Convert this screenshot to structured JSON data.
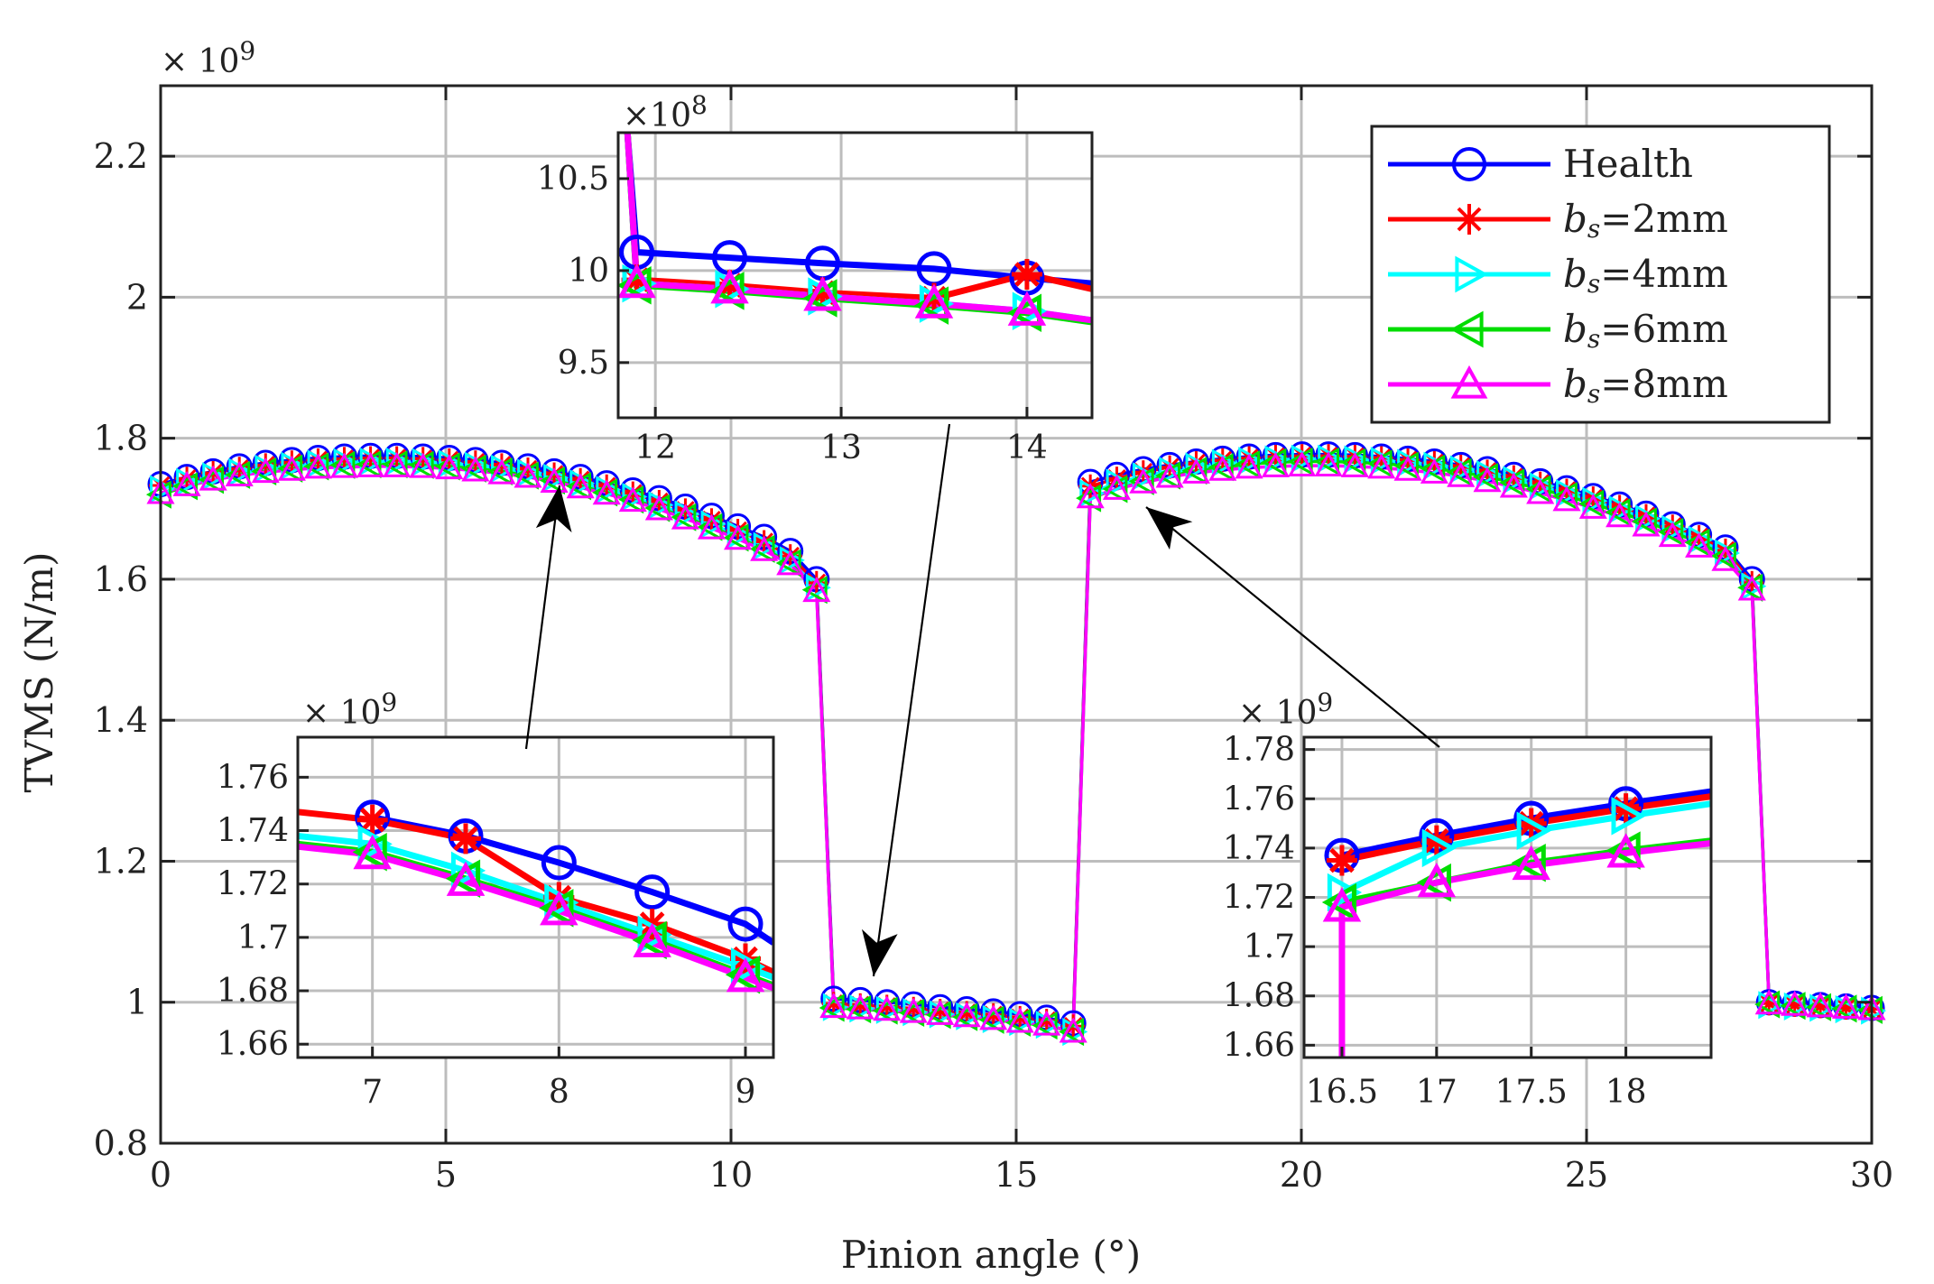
{
  "chart_data": {
    "type": "line",
    "xlabel": "Pinion angle (°)",
    "ylabel": "TVMS (N/m)",
    "y_multiplier": "× 10^9",
    "xlim": [
      0,
      30
    ],
    "ylim": [
      0.8,
      2.3
    ],
    "xticks": [
      "0",
      "5",
      "10",
      "15",
      "20",
      "25",
      "30"
    ],
    "yticks": [
      "0.8",
      "1",
      "1.2",
      "1.4",
      "1.6",
      "1.8",
      "2",
      "2.2"
    ],
    "grid": true,
    "legend_position": "top-right",
    "colors": {
      "Health": "#0000ff",
      "bs=2mm": "#ff0000",
      "bs=4mm": "#00ffff",
      "bs=6mm": "#00dd00",
      "bs=8mm": "#ff00ff"
    },
    "series": [
      {
        "name": "Health",
        "label_italic": "",
        "label_rest": "Health",
        "color": "#0000ff",
        "marker": "circle",
        "double_tooth_1": {
          "x_start": 0,
          "x_end": 11.5,
          "values": [
            1.735,
            1.745,
            1.753,
            1.76,
            1.765,
            1.769,
            1.772,
            1.774,
            1.775,
            1.775,
            1.774,
            1.772,
            1.769,
            1.765,
            1.76,
            1.753,
            1.745,
            1.736,
            1.726,
            1.715,
            1.703,
            1.69,
            1.675,
            1.66,
            1.64,
            1.6
          ]
        },
        "single_tooth": {
          "x_start": 11.8,
          "x_end": 16.0,
          "values": [
            1.005,
            1.003,
            1.0,
            0.997,
            0.993,
            0.99,
            0.987,
            0.983,
            0.978,
            0.97
          ]
        },
        "double_tooth_2": {
          "x_start": 16.3,
          "x_end": 27.9,
          "values": [
            1.738,
            1.748,
            1.756,
            1.762,
            1.767,
            1.771,
            1.774,
            1.776,
            1.777,
            1.777,
            1.776,
            1.774,
            1.771,
            1.767,
            1.762,
            1.756,
            1.748,
            1.739,
            1.729,
            1.718,
            1.706,
            1.693,
            1.678,
            1.663,
            1.645,
            1.6
          ]
        },
        "single_tooth_2": {
          "x_start": 28.2,
          "x_end": 30.0,
          "values": [
            1.0,
            0.998,
            0.996,
            0.994,
            0.992
          ]
        }
      },
      {
        "name": "bs=2mm",
        "label_italic": "b",
        "label_sub": "s",
        "label_rest": "=2mm",
        "color": "#ff0000",
        "marker": "asterisk",
        "double_tooth_1": {
          "x_start": 0,
          "x_end": 11.5,
          "values": [
            1.733,
            1.743,
            1.751,
            1.757,
            1.762,
            1.766,
            1.769,
            1.771,
            1.772,
            1.772,
            1.771,
            1.769,
            1.766,
            1.762,
            1.756,
            1.749,
            1.741,
            1.732,
            1.722,
            1.71,
            1.698,
            1.684,
            1.669,
            1.653,
            1.633,
            1.595
          ]
        },
        "single_tooth": {
          "x_start": 11.8,
          "x_end": 16.0,
          "values": [
            0.998,
            0.996,
            0.994,
            0.991,
            0.988,
            0.985,
            0.982,
            0.978,
            0.974,
            0.966
          ]
        },
        "double_tooth_2": {
          "x_start": 16.3,
          "x_end": 27.9,
          "values": [
            1.732,
            1.743,
            1.752,
            1.759,
            1.765,
            1.769,
            1.772,
            1.774,
            1.775,
            1.775,
            1.774,
            1.772,
            1.769,
            1.765,
            1.76,
            1.753,
            1.745,
            1.736,
            1.726,
            1.715,
            1.703,
            1.69,
            1.675,
            1.66,
            1.641,
            1.595
          ]
        },
        "single_tooth_2": {
          "x_start": 28.2,
          "x_end": 30.0,
          "values": [
            0.998,
            0.996,
            0.994,
            0.992,
            0.99
          ]
        }
      },
      {
        "name": "bs=4mm",
        "label_italic": "b",
        "label_sub": "s",
        "label_rest": "=4mm",
        "color": "#00ffff",
        "marker": "triangle-right",
        "double_tooth_1": {
          "x_start": 0,
          "x_end": 11.5,
          "values": [
            1.728,
            1.738,
            1.746,
            1.752,
            1.757,
            1.761,
            1.764,
            1.766,
            1.767,
            1.767,
            1.766,
            1.764,
            1.761,
            1.757,
            1.751,
            1.744,
            1.736,
            1.727,
            1.717,
            1.705,
            1.692,
            1.678,
            1.663,
            1.647,
            1.627,
            1.588
          ]
        },
        "single_tooth": {
          "x_start": 11.8,
          "x_end": 16.0,
          "values": [
            0.993,
            0.991,
            0.989,
            0.986,
            0.983,
            0.98,
            0.976,
            0.972,
            0.968,
            0.958
          ]
        },
        "double_tooth_2": {
          "x_start": 16.3,
          "x_end": 27.9,
          "values": [
            1.722,
            1.737,
            1.746,
            1.754,
            1.76,
            1.765,
            1.768,
            1.77,
            1.771,
            1.771,
            1.77,
            1.768,
            1.765,
            1.761,
            1.756,
            1.749,
            1.741,
            1.732,
            1.722,
            1.711,
            1.699,
            1.686,
            1.671,
            1.656,
            1.637,
            1.59
          ]
        },
        "single_tooth_2": {
          "x_start": 28.2,
          "x_end": 30.0,
          "values": [
            0.996,
            0.994,
            0.992,
            0.99,
            0.988
          ]
        }
      },
      {
        "name": "bs=6mm",
        "label_italic": "b",
        "label_sub": "s",
        "label_rest": "=6mm",
        "color": "#00dd00",
        "marker": "triangle-left",
        "double_tooth_1": {
          "x_start": 0,
          "x_end": 11.5,
          "values": [
            1.72,
            1.732,
            1.741,
            1.748,
            1.753,
            1.757,
            1.76,
            1.762,
            1.763,
            1.763,
            1.762,
            1.76,
            1.757,
            1.753,
            1.747,
            1.74,
            1.732,
            1.723,
            1.713,
            1.701,
            1.688,
            1.674,
            1.659,
            1.643,
            1.623,
            1.585
          ]
        },
        "single_tooth": {
          "x_start": 11.8,
          "x_end": 16.0,
          "values": [
            0.992,
            0.99,
            0.988,
            0.985,
            0.982,
            0.979,
            0.975,
            0.971,
            0.967,
            0.958
          ]
        },
        "double_tooth_2": {
          "x_start": 16.3,
          "x_end": 27.9,
          "values": [
            1.715,
            1.728,
            1.739,
            1.747,
            1.754,
            1.759,
            1.763,
            1.766,
            1.767,
            1.767,
            1.766,
            1.764,
            1.761,
            1.757,
            1.752,
            1.745,
            1.737,
            1.728,
            1.718,
            1.707,
            1.695,
            1.682,
            1.667,
            1.652,
            1.633,
            1.588
          ]
        },
        "single_tooth_2": {
          "x_start": 28.2,
          "x_end": 30.0,
          "values": [
            0.997,
            0.995,
            0.993,
            0.991,
            0.989
          ]
        }
      },
      {
        "name": "bs=8mm",
        "label_italic": "b",
        "label_sub": "s",
        "label_rest": "=8mm",
        "color": "#ff00ff",
        "marker": "triangle-up",
        "double_tooth_1": {
          "x_start": 0,
          "x_end": 11.5,
          "values": [
            1.722,
            1.733,
            1.741,
            1.747,
            1.752,
            1.755,
            1.758,
            1.759,
            1.76,
            1.76,
            1.759,
            1.757,
            1.754,
            1.75,
            1.745,
            1.738,
            1.73,
            1.721,
            1.711,
            1.699,
            1.686,
            1.672,
            1.657,
            1.641,
            1.621,
            1.583
          ]
        },
        "single_tooth": {
          "x_start": 11.8,
          "x_end": 16.0,
          "values": [
            0.993,
            0.991,
            0.989,
            0.986,
            0.983,
            0.98,
            0.976,
            0.972,
            0.968,
            0.958
          ]
        },
        "double_tooth_2": {
          "x_start": 16.3,
          "x_end": 27.9,
          "values": [
            1.716,
            1.728,
            1.737,
            1.745,
            1.751,
            1.755,
            1.758,
            1.76,
            1.761,
            1.761,
            1.76,
            1.758,
            1.755,
            1.751,
            1.746,
            1.739,
            1.731,
            1.722,
            1.712,
            1.701,
            1.689,
            1.676,
            1.661,
            1.646,
            1.627,
            1.585
          ]
        },
        "single_tooth_2": {
          "x_start": 28.2,
          "x_end": 30.0,
          "values": [
            0.998,
            0.996,
            0.994,
            0.992,
            0.99
          ]
        }
      }
    ],
    "insets": [
      {
        "id": "inset-top",
        "y_multiplier": "×10^8",
        "xlim": [
          11.8,
          14.35
        ],
        "ylim": [
          9.2,
          10.75
        ],
        "xticks": [
          "12",
          "13",
          "14"
        ],
        "yticks": [
          "9.5",
          "10",
          "10.5"
        ],
        "series": [
          {
            "name": "Health",
            "x": [
              11.85,
              11.9,
              12.4,
              12.9,
              13.5,
              14.0,
              14.35
            ],
            "y": [
              10.75,
              10.1,
              10.07,
              10.04,
              10.01,
              9.96,
              9.93
            ]
          },
          {
            "name": "bs=2mm",
            "x": [
              11.85,
              11.9,
              12.4,
              12.9,
              13.5,
              14.0,
              14.35
            ],
            "y": [
              10.75,
              9.95,
              9.92,
              9.88,
              9.85,
              9.98,
              9.9
            ]
          },
          {
            "name": "bs=4mm",
            "x": [
              11.85,
              11.9,
              12.4,
              12.9,
              13.5,
              14.0,
              14.35
            ],
            "y": [
              10.75,
              9.93,
              9.9,
              9.86,
              9.82,
              9.78,
              9.73
            ]
          },
          {
            "name": "bs=6mm",
            "x": [
              11.85,
              11.9,
              12.4,
              12.9,
              13.5,
              14.0,
              14.35
            ],
            "y": [
              10.75,
              9.92,
              9.89,
              9.85,
              9.81,
              9.77,
              9.72
            ]
          },
          {
            "name": "bs=8mm",
            "x": [
              11.85,
              11.9,
              12.4,
              12.9,
              13.5,
              14.0,
              14.35
            ],
            "y": [
              10.75,
              9.93,
              9.9,
              9.86,
              9.82,
              9.78,
              9.73
            ]
          }
        ]
      },
      {
        "id": "inset-left",
        "y_multiplier": "× 10^9",
        "xlim": [
          6.6,
          9.15
        ],
        "ylim": [
          1.655,
          1.775
        ],
        "xticks": [
          "7",
          "8",
          "9"
        ],
        "yticks": [
          "1.66",
          "1.68",
          "1.7",
          "1.72",
          "1.74",
          "1.76"
        ],
        "series": [
          {
            "name": "Health",
            "x": [
              7.0,
              7.5,
              8.0,
              8.5,
              9.0,
              9.15
            ],
            "y": [
              1.745,
              1.738,
              1.728,
              1.717,
              1.705,
              1.698
            ]
          },
          {
            "name": "bs=2mm",
            "x": [
              6.6,
              7.0,
              7.5,
              8.0,
              8.5,
              9.0,
              9.15
            ],
            "y": [
              1.747,
              1.744,
              1.737,
              1.715,
              1.705,
              1.692,
              1.687
            ]
          },
          {
            "name": "bs=4mm",
            "x": [
              6.6,
              7.0,
              7.5,
              8.0,
              8.5,
              9.0,
              9.15
            ],
            "y": [
              1.738,
              1.735,
              1.725,
              1.713,
              1.701,
              1.689,
              1.685
            ]
          },
          {
            "name": "bs=6mm",
            "x": [
              6.6,
              7.0,
              7.5,
              8.0,
              8.5,
              9.0,
              9.15
            ],
            "y": [
              1.735,
              1.732,
              1.722,
              1.711,
              1.699,
              1.686,
              1.682
            ]
          },
          {
            "name": "bs=8mm",
            "x": [
              6.6,
              7.0,
              7.5,
              8.0,
              8.5,
              9.0,
              9.15
            ],
            "y": [
              1.734,
              1.731,
              1.721,
              1.71,
              1.698,
              1.685,
              1.681
            ]
          }
        ]
      },
      {
        "id": "inset-right",
        "y_multiplier": "× 10^9",
        "xlim": [
          16.3,
          18.45
        ],
        "ylim": [
          1.655,
          1.785
        ],
        "xticks": [
          "16.5",
          "17",
          "17.5",
          "18"
        ],
        "yticks": [
          "1.66",
          "1.68",
          "1.7",
          "1.72",
          "1.74",
          "1.76",
          "1.78"
        ],
        "series": [
          {
            "name": "Health",
            "x": [
              16.5,
              17.0,
              17.5,
              18.0,
              18.45
            ],
            "y": [
              1.737,
              1.745,
              1.752,
              1.758,
              1.763
            ]
          },
          {
            "name": "bs=2mm",
            "x": [
              16.5,
              17.0,
              17.5,
              18.0,
              18.45
            ],
            "y": [
              1.735,
              1.743,
              1.75,
              1.756,
              1.761
            ]
          },
          {
            "name": "bs=4mm",
            "x": [
              16.5,
              17.0,
              17.5,
              18.0,
              18.45
            ],
            "y": [
              1.722,
              1.74,
              1.747,
              1.753,
              1.758
            ]
          },
          {
            "name": "bs=6mm",
            "x": [
              16.5,
              17.0,
              17.5,
              18.0,
              18.45
            ],
            "y": [
              1.718,
              1.726,
              1.734,
              1.739,
              1.743
            ]
          },
          {
            "name": "bs=8mm",
            "x": [
              16.5,
              16.5,
              17.0,
              17.5,
              18.0,
              18.45
            ],
            "y": [
              1.655,
              1.716,
              1.726,
              1.733,
              1.738,
              1.742
            ]
          }
        ]
      }
    ]
  }
}
